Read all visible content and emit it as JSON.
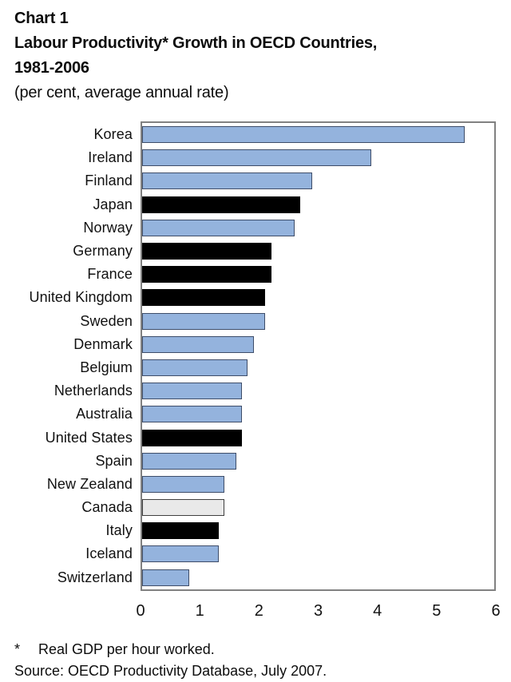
{
  "header": {
    "chart_label": "Chart 1",
    "title_line1": "Labour Productivity* Growth in OECD Countries,",
    "title_line2": "1981-2006",
    "subtitle": "(per cent, average annual rate)"
  },
  "chart_data": {
    "type": "bar",
    "orientation": "horizontal",
    "title": "Labour Productivity* Growth in OECD Countries, 1981-2006",
    "unit": "per cent, average annual rate",
    "categories": [
      "Korea",
      "Ireland",
      "Finland",
      "Japan",
      "Norway",
      "Germany",
      "France",
      "United Kingdom",
      "Sweden",
      "Denmark",
      "Belgium",
      "Netherlands",
      "Australia",
      "United States",
      "Spain",
      "New Zealand",
      "Canada",
      "Italy",
      "Iceland",
      "Switzerland"
    ],
    "values": [
      5.5,
      3.9,
      2.9,
      2.7,
      2.6,
      2.2,
      2.2,
      2.1,
      2.1,
      1.9,
      1.8,
      1.7,
      1.7,
      1.7,
      1.6,
      1.4,
      1.4,
      1.3,
      1.3,
      0.8
    ],
    "bar_styles": [
      "blue",
      "blue",
      "blue",
      "black",
      "blue",
      "black",
      "black",
      "black",
      "blue",
      "blue",
      "blue",
      "blue",
      "blue",
      "black",
      "blue",
      "blue",
      "gray",
      "black",
      "blue",
      "blue"
    ],
    "xlabel": "",
    "ylabel": "",
    "xlim": [
      0,
      6
    ],
    "x_ticks": [
      0,
      1,
      2,
      3,
      4,
      5,
      6
    ],
    "grid": false,
    "legend": "none"
  },
  "style": {
    "bar_blue": "#94b3dd",
    "bar_blue_border": "#3e4d69",
    "bar_black": "#000000",
    "bar_gray": "#e9e9e9",
    "bar_gray_border": "#3f3f3f",
    "plot_frame": "#818181"
  },
  "footnotes": {
    "marker": "*",
    "note": "Real GDP per hour worked.",
    "source": "Source: OECD Productivity Database, July 2007."
  }
}
